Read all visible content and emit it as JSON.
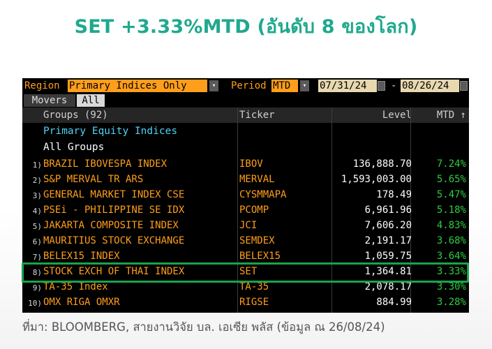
{
  "headline": "SET +3.33%MTD (อันดับ 8 ของโลก)",
  "toolbar": {
    "region_label": "Region",
    "region_value": "Primary Indices Only",
    "period_label": "Period",
    "period_value": "MTD",
    "start_date": "07/31/24",
    "date_sep": "-",
    "end_date": "08/26/24"
  },
  "tabs": [
    {
      "label": "Movers"
    },
    {
      "label": "All"
    }
  ],
  "columns": {
    "groups": "Groups (92)",
    "ticker": "Ticker",
    "level": "Level",
    "mtd": "MTD ↑"
  },
  "groups": {
    "primary": "Primary Equity Indices",
    "all": "All Groups"
  },
  "rows": [
    {
      "num": "1)",
      "name": "BRAZIL IBOVESPA INDEX",
      "ticker": "IBOV",
      "level": "136,888.70",
      "mtd": "7.24%"
    },
    {
      "num": "2)",
      "name": "S&P MERVAL TR ARS",
      "ticker": "MERVAL",
      "level": "1,593,003.00",
      "mtd": "5.65%"
    },
    {
      "num": "3)",
      "name": "GENERAL MARKET INDEX CSE",
      "ticker": "CYSMMAPA",
      "level": "178.49",
      "mtd": "5.47%"
    },
    {
      "num": "4)",
      "name": "PSEi - PHILIPPINE SE IDX",
      "ticker": "PCOMP",
      "level": "6,961.96",
      "mtd": "5.18%"
    },
    {
      "num": "5)",
      "name": "JAKARTA COMPOSITE INDEX",
      "ticker": "JCI",
      "level": "7,606.20",
      "mtd": "4.83%"
    },
    {
      "num": "6)",
      "name": "MAURITIUS STOCK EXCHANGE",
      "ticker": "SEMDEX",
      "level": "2,191.17",
      "mtd": "3.68%"
    },
    {
      "num": "7)",
      "name": "BELEX15 INDEX",
      "ticker": "BELEX15",
      "level": "1,059.75",
      "mtd": "3.64%"
    },
    {
      "num": "8)",
      "name": "STOCK EXCH OF THAI INDEX",
      "ticker": "SET",
      "level": "1,364.81",
      "mtd": "3.33%"
    },
    {
      "num": "9)",
      "name": "TA-35 Index",
      "ticker": "TA-35",
      "level": "2,078.17",
      "mtd": "3.30%"
    },
    {
      "num": "10)",
      "name": "OMX RIGA OMXR",
      "ticker": "RIGSE",
      "level": "884.99",
      "mtd": "3.28%"
    }
  ],
  "source": "ที่มา: BLOOMBERG, สายงานวิจัย บล. เอเซีย พลัส  (ข้อมูล ณ  26/08/24)",
  "colors": {
    "headline": "#1fa98e",
    "bloomberg_orange": "#ff9e1a",
    "positive_green": "#2ecc40",
    "highlight_border": "#1aa34a"
  }
}
